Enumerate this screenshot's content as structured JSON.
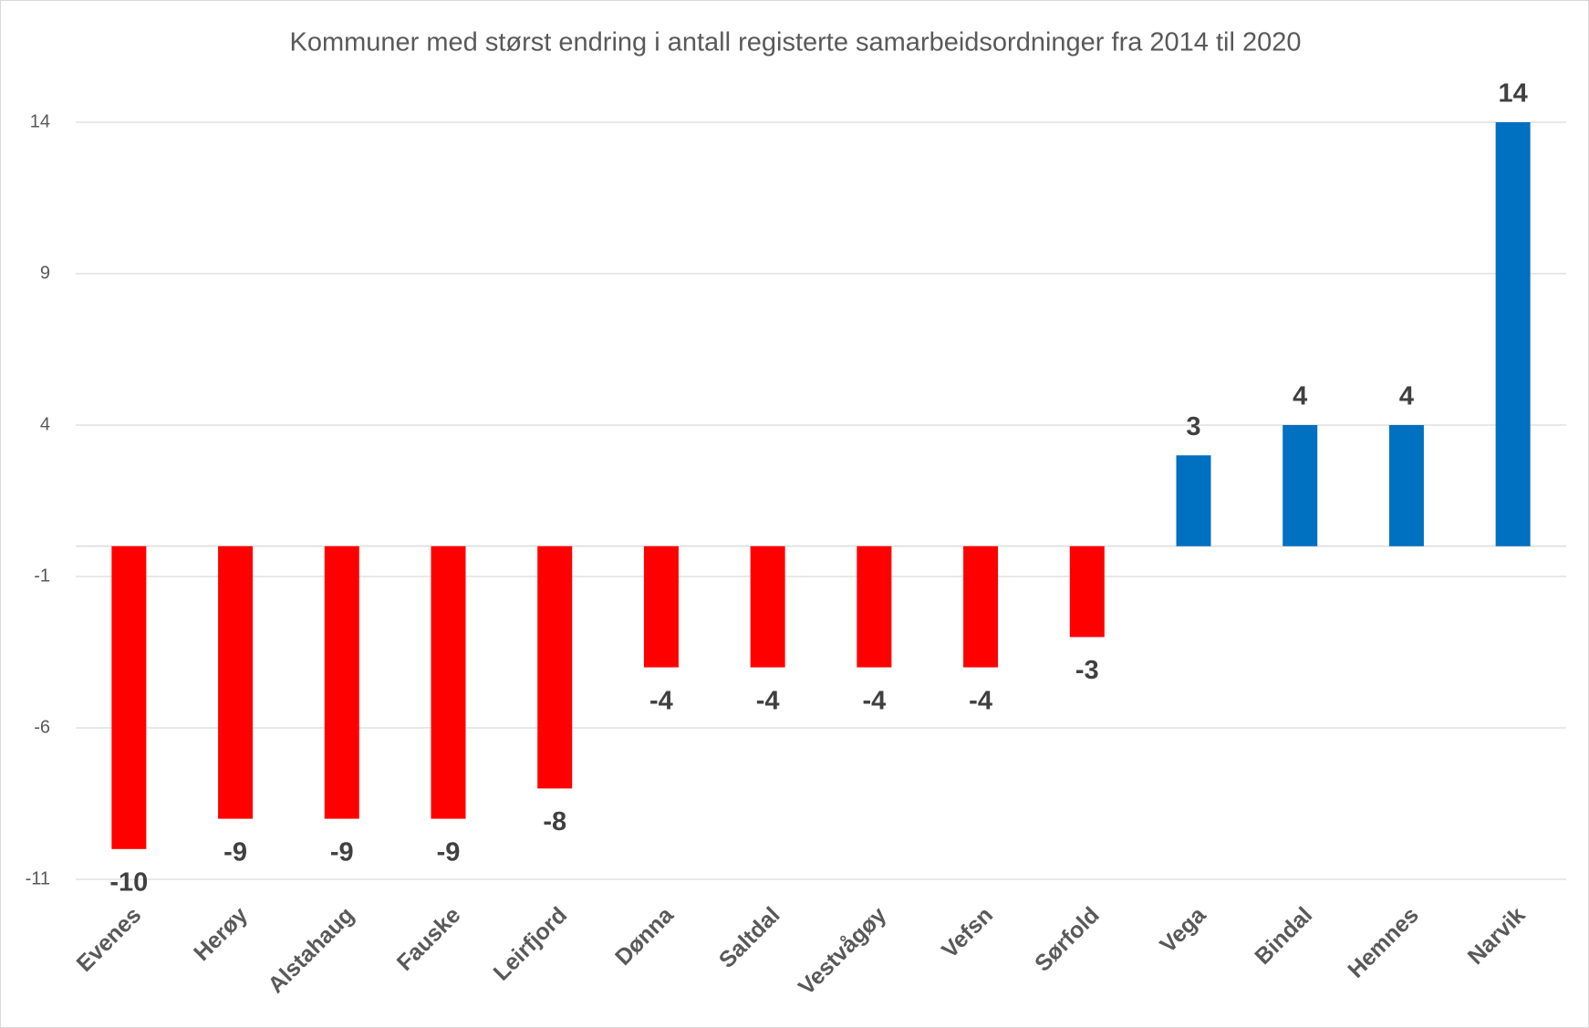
{
  "chart_data": {
    "type": "bar",
    "title": "Kommuner  med størst endring i antall registerte samarbeidsordninger  fra 2014 til 2020",
    "categories": [
      "Evenes",
      "Herøy",
      "Alstahaug",
      "Fauske",
      "Leirfjord",
      "Dønna",
      "Saltdal",
      "Vestvågøy",
      "Vefsn",
      "Sørfold",
      "Vega",
      "Bindal",
      "Hemnes",
      "Narvik"
    ],
    "values": [
      -10,
      -9,
      -9,
      -9,
      -8,
      -4,
      -4,
      -4,
      -4,
      -3,
      3,
      4,
      4,
      14
    ],
    "colors": [
      "#ff0000",
      "#ff0000",
      "#ff0000",
      "#ff0000",
      "#ff0000",
      "#ff0000",
      "#ff0000",
      "#ff0000",
      "#ff0000",
      "#ff0000",
      "#0070c0",
      "#0070c0",
      "#0070c0",
      "#0070c0"
    ],
    "ylim": [
      -11,
      14
    ],
    "yticks": [
      -11,
      -6,
      -1,
      4,
      9,
      14
    ],
    "grid": true
  }
}
